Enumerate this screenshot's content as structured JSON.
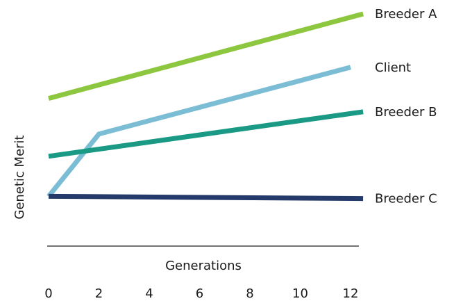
{
  "chart_data": {
    "type": "line",
    "title": "",
    "xlabel": "Generations",
    "ylabel": "Genetic Merit",
    "x_ticks": [
      "0",
      "2",
      "4",
      "6",
      "8",
      "10",
      "12"
    ],
    "xlim": [
      0,
      12.5
    ],
    "ylim": [
      0,
      10
    ],
    "grid": false,
    "legend": "inline-right",
    "series": [
      {
        "name": "Breeder A",
        "color": "#8dc63f",
        "x": [
          0,
          12.5
        ],
        "y": [
          6.2,
          10
        ]
      },
      {
        "name": "Client",
        "color": "#7bbdd4",
        "x": [
          0,
          2,
          12
        ],
        "y": [
          1.8,
          4.6,
          7.6
        ]
      },
      {
        "name": "Breeder B",
        "color": "#1a9a85",
        "x": [
          0,
          12.5
        ],
        "y": [
          3.6,
          5.6
        ]
      },
      {
        "name": "Breeder C",
        "color": "#233a6b",
        "x": [
          0,
          12.5
        ],
        "y": [
          1.8,
          1.7
        ]
      }
    ]
  }
}
